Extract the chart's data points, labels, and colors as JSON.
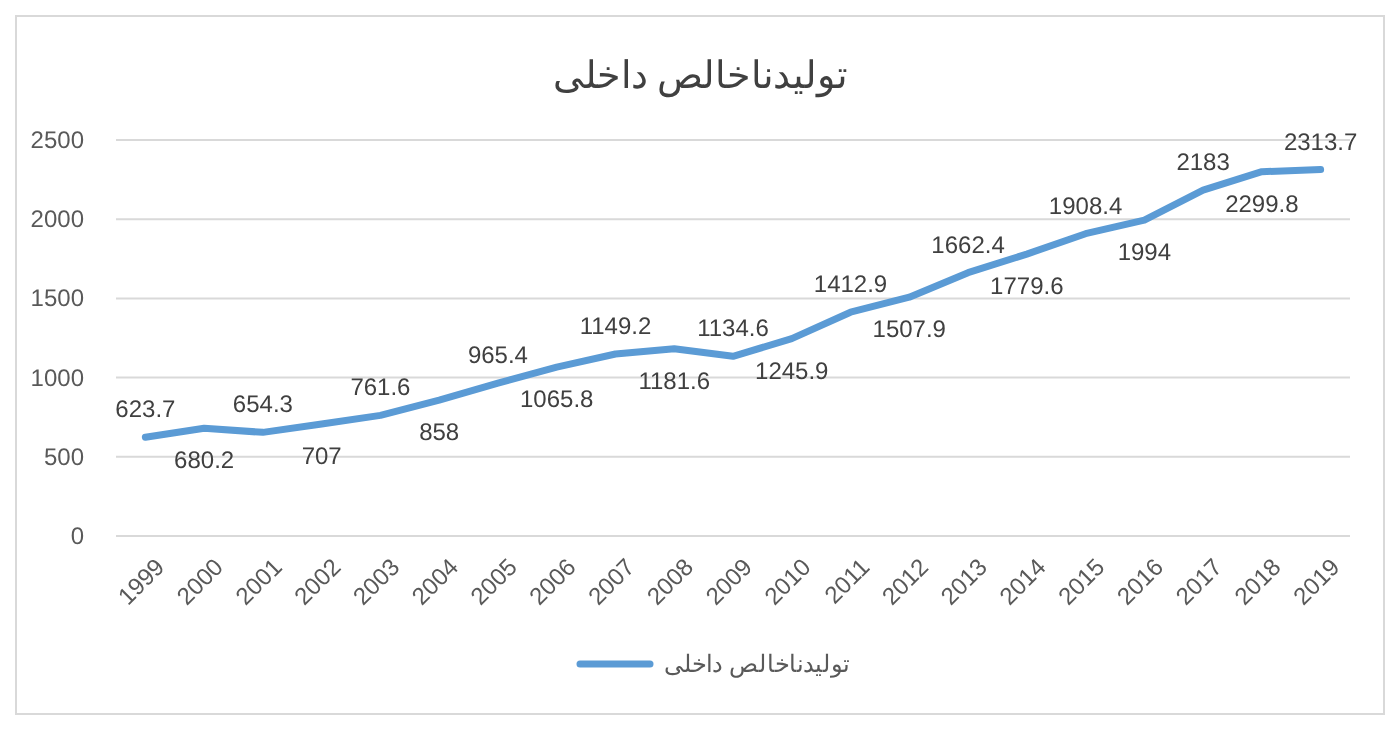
{
  "chart_data": {
    "type": "line",
    "title": "تولیدناخالص داخلی",
    "categories": [
      "1999",
      "2000",
      "2001",
      "2002",
      "2003",
      "2004",
      "2005",
      "2006",
      "2007",
      "2008",
      "2009",
      "2010",
      "2011",
      "2012",
      "2013",
      "2014",
      "2015",
      "2016",
      "2017",
      "2018",
      "2019"
    ],
    "series": [
      {
        "name": "تولیدناخالص داخلی",
        "color": "#5b9bd5",
        "values": [
          623.7,
          680.2,
          654.3,
          707,
          761.6,
          858,
          965.4,
          1065.8,
          1149.2,
          1181.6,
          1134.6,
          1245.9,
          1412.9,
          1507.9,
          1662.4,
          1779.6,
          1908.4,
          1994,
          2183,
          2299.8,
          2313.7
        ]
      }
    ],
    "ylim": [
      0,
      2500
    ],
    "yticks": [
      0,
      500,
      1000,
      1500,
      2000,
      2500
    ],
    "grid": "y",
    "legend": "bottom",
    "data_labels": true,
    "marker": "none",
    "line_style": "solid"
  }
}
